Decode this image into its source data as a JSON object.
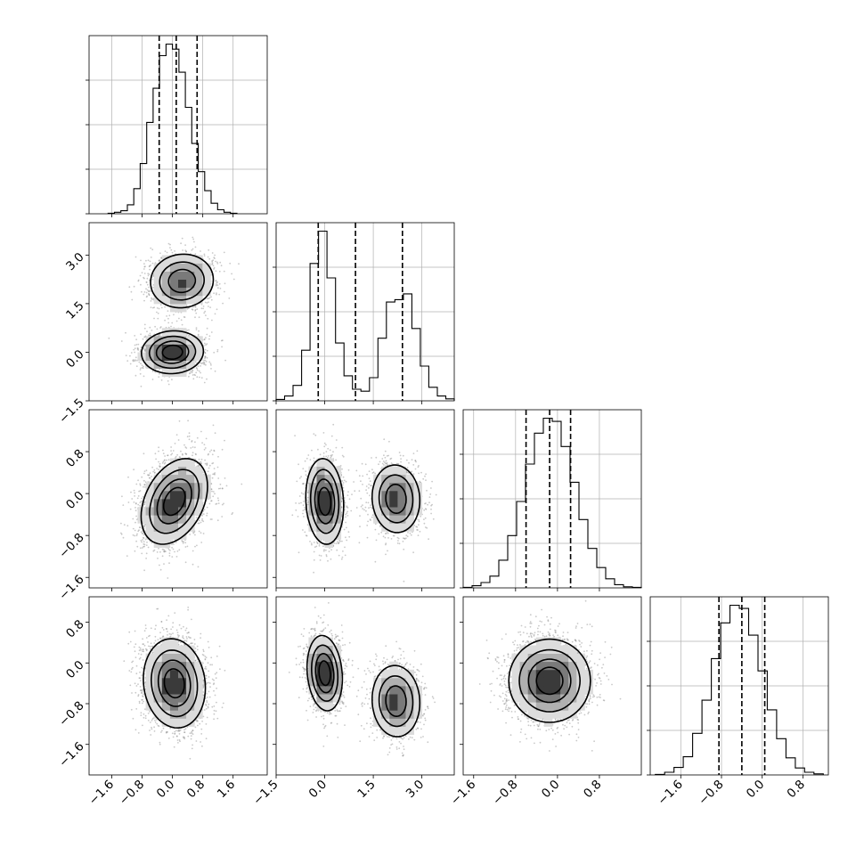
{
  "chart_data": {
    "type": "corner",
    "description_free": true,
    "grid": true,
    "params": [
      {
        "range": [
          -2.2,
          2.5
        ],
        "ticks": [
          -1.6,
          -0.8,
          0.0,
          0.8,
          1.6
        ],
        "tick_labels": [
          "−1.6",
          "−0.8",
          "0.0",
          "0.8",
          "1.6"
        ],
        "quantiles": [
          -0.35,
          0.1,
          0.65
        ],
        "hist_edges": [
          -1.7,
          1.7
        ],
        "hist_counts": [
          1,
          3,
          6,
          18,
          50,
          100,
          182,
          250,
          315,
          338,
          328,
          282,
          212,
          140,
          84,
          46,
          21,
          8,
          3,
          1
        ],
        "bimodal": false,
        "modes": [
          {
            "mean": 0.1,
            "sd": 0.42,
            "w": 1
          }
        ]
      },
      {
        "range": [
          -1.5,
          4.0
        ],
        "ticks": [
          -1.5,
          0.0,
          1.5,
          3.0
        ],
        "tick_labels": [
          "−1.5",
          "0.0",
          "1.5",
          "3.0"
        ],
        "quantiles": [
          -0.2,
          0.95,
          2.4
        ],
        "hist_edges": [
          -1.5,
          4.0
        ],
        "hist_counts": [
          3,
          10,
          32,
          105,
          285,
          352,
          255,
          120,
          52,
          24,
          20,
          48,
          130,
          205,
          210,
          222,
          150,
          72,
          28,
          10,
          4
        ],
        "bimodal": true,
        "modes": [
          {
            "mean": 0.0,
            "sd": 0.34,
            "w": 0.55
          },
          {
            "mean": 2.2,
            "sd": 0.45,
            "w": 0.45
          }
        ]
      },
      {
        "range": [
          -1.8,
          1.6
        ],
        "ticks": [
          -1.6,
          -0.8,
          0.0,
          0.8
        ],
        "tick_labels": [
          "−1.6",
          "−0.8",
          "0.0",
          "0.8"
        ],
        "quantiles": [
          -0.6,
          -0.15,
          0.25
        ],
        "hist_edges": [
          -1.8,
          1.6
        ],
        "hist_counts": [
          1,
          4,
          10,
          22,
          52,
          98,
          162,
          232,
          290,
          318,
          312,
          265,
          198,
          128,
          74,
          38,
          17,
          6,
          2,
          1
        ],
        "bimodal": false,
        "modes": [
          {
            "mean": -0.18,
            "sd": 0.42,
            "w": 1
          }
        ]
      },
      {
        "range": [
          -2.2,
          1.3
        ],
        "ticks": [
          -1.6,
          -0.8,
          0.0,
          0.8
        ],
        "tick_labels": [
          "−1.6",
          "−0.8",
          "0.0",
          "0.8"
        ],
        "quantiles": [
          -0.85,
          -0.4,
          0.05
        ],
        "hist_edges": [
          -2.1,
          1.2
        ],
        "hist_counts": [
          1,
          5,
          14,
          34,
          78,
          140,
          218,
          285,
          318,
          312,
          262,
          195,
          122,
          68,
          32,
          13,
          5,
          2
        ],
        "bimodal": false,
        "modes": [
          {
            "mean": -0.4,
            "sd": 0.45,
            "w": 1
          }
        ]
      }
    ],
    "hist_ylim_factor": 1.05,
    "pairs": [
      {
        "row": 1,
        "col": 0,
        "components": [
          {
            "mx": 0.0,
            "my": 0.0,
            "sx": 0.42,
            "sy": 0.34,
            "rho": 0.05,
            "w": 0.55
          },
          {
            "mx": 0.25,
            "my": 2.2,
            "sx": 0.45,
            "sy": 0.45,
            "rho": 0.05,
            "w": 0.45
          }
        ]
      },
      {
        "row": 2,
        "col": 0,
        "components": [
          {
            "mx": 0.05,
            "my": -0.15,
            "sx": 0.45,
            "sy": 0.42,
            "rho": 0.35,
            "w": 1
          }
        ]
      },
      {
        "row": 2,
        "col": 1,
        "components": [
          {
            "mx": 0.0,
            "my": -0.15,
            "sx": 0.3,
            "sy": 0.42,
            "rho": -0.1,
            "w": 0.55
          },
          {
            "mx": 2.2,
            "my": -0.1,
            "sx": 0.4,
            "sy": 0.35,
            "rho": -0.05,
            "w": 0.45
          }
        ]
      },
      {
        "row": 3,
        "col": 0,
        "components": [
          {
            "mx": 0.05,
            "my": -0.4,
            "sx": 0.42,
            "sy": 0.45,
            "rho": -0.1,
            "w": 1
          }
        ]
      },
      {
        "row": 3,
        "col": 1,
        "components": [
          {
            "mx": 0.0,
            "my": -0.2,
            "sx": 0.28,
            "sy": 0.38,
            "rho": -0.15,
            "w": 0.55
          },
          {
            "mx": 2.2,
            "my": -0.75,
            "sx": 0.4,
            "sy": 0.38,
            "rho": -0.05,
            "w": 0.45
          }
        ]
      },
      {
        "row": 3,
        "col": 2,
        "components": [
          {
            "mx": -0.15,
            "my": -0.35,
            "sx": 0.4,
            "sy": 0.42,
            "rho": 0.0,
            "w": 1
          }
        ]
      }
    ],
    "contour_levels": [
      0.15,
      0.35,
      0.6,
      0.82
    ],
    "colors": {
      "density": "#000000",
      "points": "#888888",
      "grid": "#b0b0b0"
    }
  }
}
